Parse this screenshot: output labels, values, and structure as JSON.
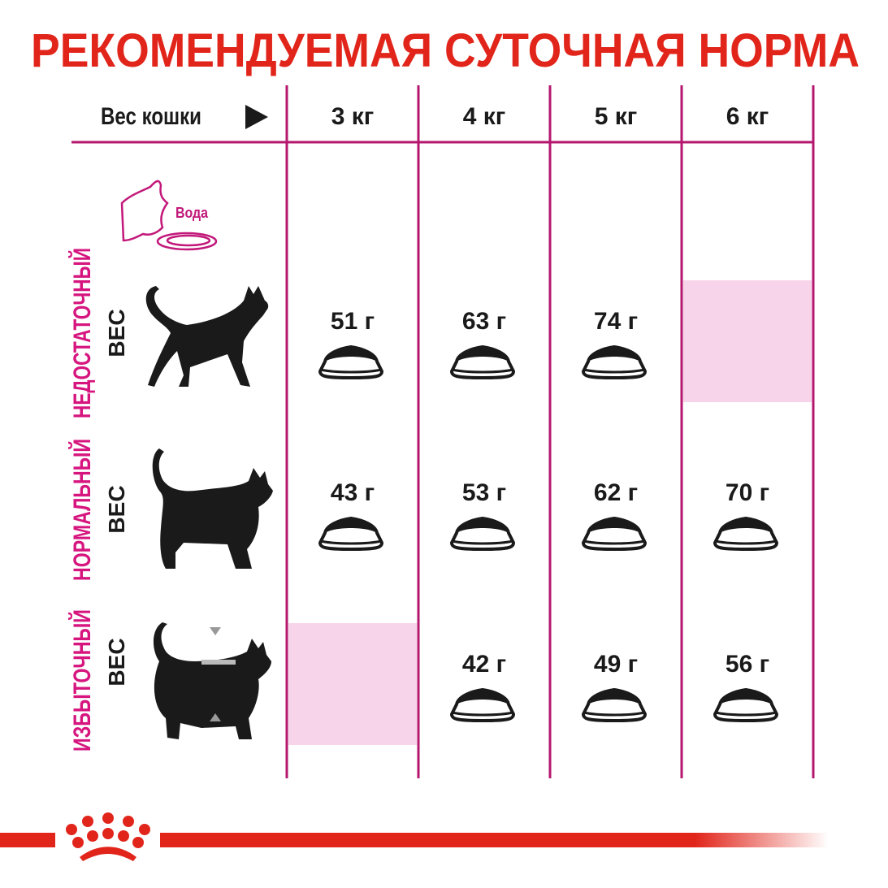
{
  "title": "РЕКОМЕНДУЕМАЯ СУТОЧНАЯ НОРМА",
  "header": {
    "label": "Вес кошки",
    "arrow_icon": "play-triangle-icon",
    "columns": [
      "3 кг",
      "4 кг",
      "5 кг",
      "6 кг"
    ]
  },
  "water_label": "Вода",
  "rows": [
    {
      "label": "НЕДОСТАТОЧНЫЙ",
      "sub": "ВЕС",
      "values": [
        "51 г",
        "63 г",
        "74 г",
        null
      ]
    },
    {
      "label": "НОРМАЛЬНЫЙ",
      "sub": "ВЕС",
      "values": [
        "43 г",
        "53 г",
        "62 г",
        "70 г"
      ]
    },
    {
      "label": "ИЗБЫТОЧНЫЙ",
      "sub": "ВЕС",
      "values": [
        null,
        "42 г",
        "49 г",
        "56 г"
      ]
    }
  ],
  "colors": {
    "title": "#e1251b",
    "grid": "#b5176f",
    "row_label": "#d6157e",
    "empty_cell": "#f8d4ea",
    "text": "#1a1a1a",
    "brand": "#e1251b"
  }
}
